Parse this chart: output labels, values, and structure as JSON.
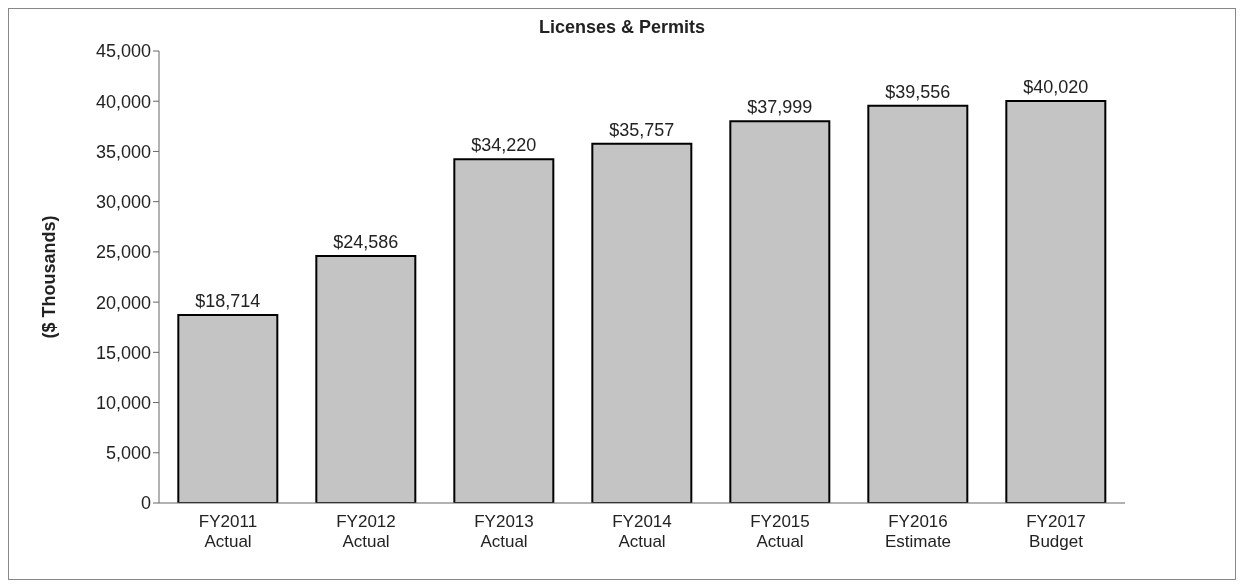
{
  "chart_data": {
    "type": "bar",
    "title": "Licenses & Permits",
    "ylabel": "($ Thousands)",
    "categories": [
      "FY2011\nActual",
      "FY2012\nActual",
      "FY2013\nActual",
      "FY2014\nActual",
      "FY2015\nActual",
      "FY2016\nEstimate",
      "FY2017\nBudget"
    ],
    "values": [
      18714,
      24586,
      34220,
      35757,
      37999,
      39556,
      40020
    ],
    "value_labels": [
      "$18,714",
      "$24,586",
      "$34,220",
      "$35,757",
      "$37,999",
      "$39,556",
      "$40,020"
    ],
    "color": "#c4c4c4",
    "ylim": [
      0,
      45000
    ],
    "yticks": [
      {
        "value": 0,
        "label": "0"
      },
      {
        "value": 5000,
        "label": "5,000"
      },
      {
        "value": 10000,
        "label": "10,000"
      },
      {
        "value": 15000,
        "label": "15,000"
      },
      {
        "value": 20000,
        "label": "20,000"
      },
      {
        "value": 25000,
        "label": "25,000"
      },
      {
        "value": 30000,
        "label": "30,000"
      },
      {
        "value": 35000,
        "label": "35,000"
      },
      {
        "value": 40000,
        "label": "40,000"
      },
      {
        "value": 45000,
        "label": "45,000"
      }
    ],
    "grid": false,
    "legend": false
  }
}
